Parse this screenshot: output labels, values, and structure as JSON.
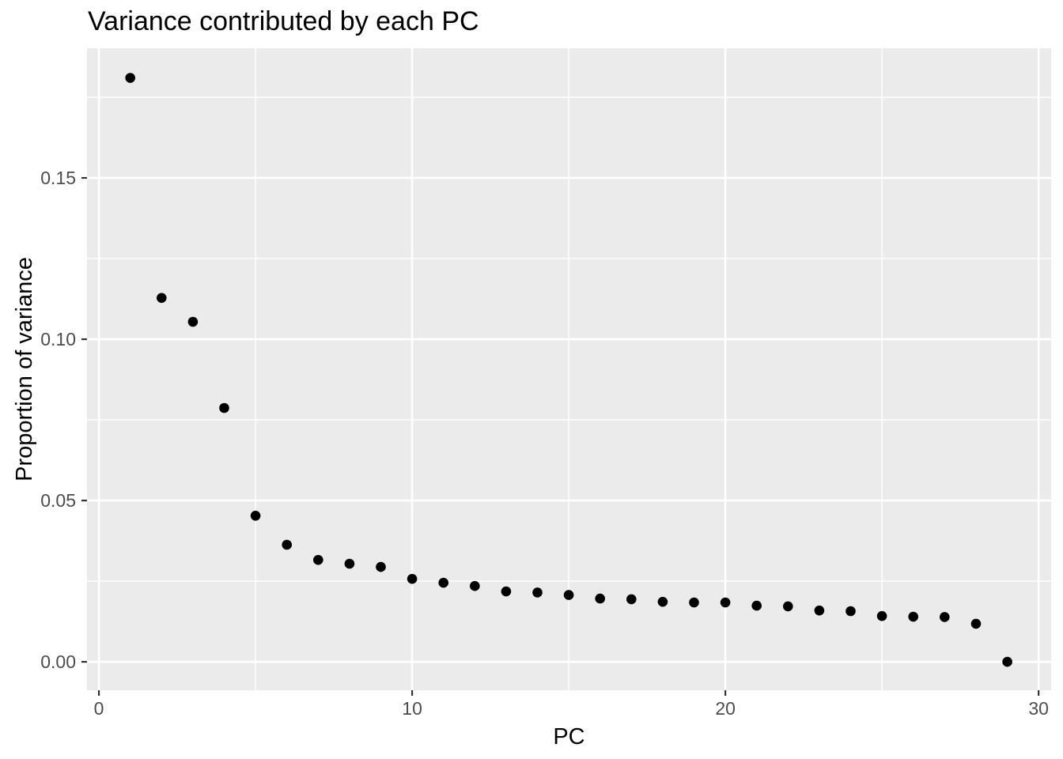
{
  "chart_data": {
    "type": "scatter",
    "title": "Variance contributed by each PC",
    "xlabel": "PC",
    "ylabel": "Proportion of variance",
    "x": [
      1,
      2,
      3,
      4,
      5,
      6,
      7,
      8,
      9,
      10,
      11,
      12,
      13,
      14,
      15,
      16,
      17,
      18,
      19,
      20,
      21,
      22,
      23,
      24,
      25,
      26,
      27,
      28,
      29
    ],
    "y": [
      0.181,
      0.1128,
      0.1054,
      0.0787,
      0.0453,
      0.0363,
      0.0316,
      0.0304,
      0.0294,
      0.0257,
      0.0245,
      0.0235,
      0.0218,
      0.0215,
      0.0207,
      0.0196,
      0.0194,
      0.0186,
      0.0184,
      0.0184,
      0.0174,
      0.0172,
      0.0159,
      0.0157,
      0.0142,
      0.014,
      0.0139,
      0.0118,
      0.0
    ],
    "xlim": [
      -0.38,
      30.4
    ],
    "ylim": [
      -0.0088,
      0.1902
    ],
    "x_major_ticks": [
      0,
      10,
      20,
      30
    ],
    "x_major_labels": [
      "0",
      "10",
      "20",
      "30"
    ],
    "x_minor_ticks": [
      5,
      15,
      25
    ],
    "y_major_ticks": [
      0,
      0.05,
      0.1,
      0.15
    ],
    "y_major_labels": [
      "0.00",
      "0.05",
      "0.10",
      "0.15"
    ],
    "y_minor_ticks": [
      0.025,
      0.075,
      0.125,
      0.175
    ],
    "grid": "major-and-minor",
    "legend": "none",
    "point_color": "#000000",
    "point_radius_px": 6.3,
    "colors": {
      "plot_background": "#FFFFFF",
      "panel_background": "#EBEBEB",
      "grid": "#FFFFFF",
      "tick_label": "#4D4D4D",
      "axis_tick": "#333333",
      "title": "#000000",
      "axis_title": "#000000"
    }
  }
}
